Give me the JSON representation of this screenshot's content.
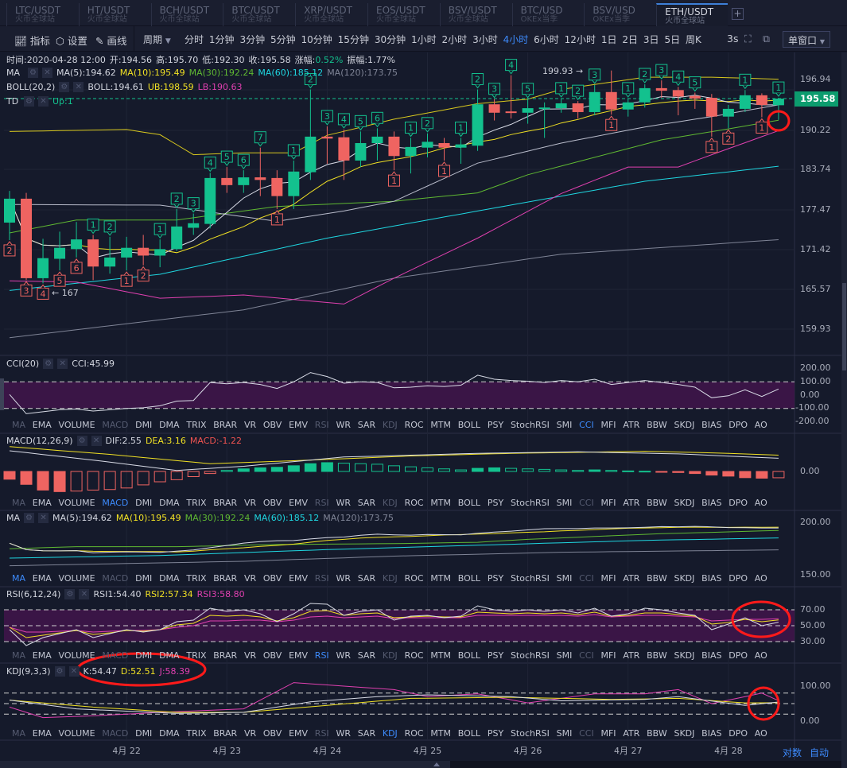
{
  "tabs": [
    {
      "symbol": "LTC/USDT",
      "exchange": "火币全球站"
    },
    {
      "symbol": "HT/USDT",
      "exchange": "火币全球站"
    },
    {
      "symbol": "BCH/USDT",
      "exchange": "火币全球站"
    },
    {
      "symbol": "BTC/USDT",
      "exchange": "火币全球站"
    },
    {
      "symbol": "XRP/USDT",
      "exchange": "火币全球站"
    },
    {
      "symbol": "EOS/USDT",
      "exchange": "火币全球站"
    },
    {
      "symbol": "BSV/USDT",
      "exchange": "火币全球站"
    },
    {
      "symbol": "BTC/USD",
      "exchange": "OKEx当季"
    },
    {
      "symbol": "BSV/USD",
      "exchange": "OKEx当季"
    },
    {
      "symbol": "ETH/USDT",
      "exchange": "火币全球站",
      "active": true
    }
  ],
  "add_tab": "+",
  "toolbar": {
    "indicators": "指标",
    "settings": "设置",
    "draw": "画线",
    "period": "周期",
    "periods": [
      "分时",
      "1分钟",
      "3分钟",
      "5分钟",
      "10分钟",
      "15分钟",
      "30分钟",
      "1小时",
      "2小时",
      "3小时",
      "4小时",
      "6小时",
      "12小时",
      "1日",
      "2日",
      "3日",
      "5日",
      "周K"
    ],
    "active_period": "4小时",
    "refresh": "3s",
    "window_mode": "单窗口"
  },
  "info": {
    "time": "时间:2020-04-28 12:00",
    "open": "开:194.56",
    "high": "高:195.70",
    "low": "低:192.30",
    "close": "收:195.58",
    "change_label": "涨幅:",
    "change": "0.52%",
    "amplitude": "振幅:1.77%"
  },
  "main_legends": {
    "ma": {
      "name": "MA",
      "ma5": "MA(5):194.62",
      "ma10": "MA(10):195.49",
      "ma30": "MA(30):192.24",
      "ma60": "MA(60):185.12",
      "ma120": "MA(120):173.75"
    },
    "boll": {
      "name": "BOLL(20,2)",
      "mid": "BOLL:194.61",
      "ub": "UB:198.59",
      "lb": "LB:190.63"
    },
    "td": {
      "name": "TD",
      "up": "Up:1"
    }
  },
  "price_axis": [
    "196.94",
    "190.22",
    "183.74",
    "177.47",
    "171.42",
    "165.57",
    "159.93"
  ],
  "current_price": "195.58",
  "high_mark": "199.93 →",
  "low_mark": "← 167",
  "indicator_list": [
    "MA",
    "EMA",
    "VOLUME",
    "MACD",
    "DMI",
    "DMA",
    "TRIX",
    "BRAR",
    "VR",
    "OBV",
    "EMV",
    "RSI",
    "WR",
    "SAR",
    "KDJ",
    "ROC",
    "MTM",
    "BOLL",
    "PSY",
    "StochRSI",
    "SMI",
    "CCI",
    "MFI",
    "ATR",
    "BBW",
    "SKDJ",
    "BIAS",
    "DPO",
    "AO"
  ],
  "open_indicators": [
    "MA",
    "MACD",
    "RSI",
    "KDJ",
    "CCI"
  ],
  "panes": {
    "cci": {
      "name": "CCI(20)",
      "value": "CCI:45.99",
      "axis": [
        "200.00",
        "100.00",
        "0.00",
        "-100.00",
        "-200.00"
      ],
      "active": "CCI"
    },
    "macd": {
      "name": "MACD(12,26,9)",
      "dif": "DIF:2.55",
      "dea": "DEA:3.16",
      "macd": "MACD:-1.22",
      "axis": [
        "0.00"
      ],
      "active": "MACD"
    },
    "ma": {
      "name": "MA",
      "ma5": "MA(5):194.62",
      "ma10": "MA(10):195.49",
      "ma30": "MA(30):192.24",
      "ma60": "MA(60):185.12",
      "ma120": "MA(120):173.75",
      "axis": [
        "200.00",
        "150.00"
      ],
      "active": "MA"
    },
    "rsi": {
      "name": "RSI(6,12,24)",
      "rsi1": "RSI1:54.40",
      "rsi2": "RSI2:57.34",
      "rsi3": "RSI3:58.80",
      "axis": [
        "70.00",
        "50.00",
        "30.00"
      ],
      "active": "RSI"
    },
    "kdj": {
      "name": "KDJ(9,3,3)",
      "k": "K:54.47",
      "d": "D:52.51",
      "j": "J:58.39",
      "axis": [
        "100.00",
        "0.00"
      ],
      "active": "KDJ"
    }
  },
  "dates": [
    "4月 22",
    "4月 23",
    "4月 24",
    "4月 25",
    "4月 26",
    "4月 27",
    "4月 28"
  ],
  "axis_modes": {
    "log": "对数",
    "auto": "自动"
  },
  "colors": {
    "up": "#13c18e",
    "down": "#ef6461",
    "ma5": "#d8dbe6",
    "ma10": "#f0e024",
    "ma30": "#5fb832",
    "ma60": "#1fd6e0",
    "ma120": "#7f8496",
    "boll_lb": "#e040b0",
    "accent": "#3d8bfd",
    "annotation": "#ff1a1a"
  },
  "chart_data": {
    "type": "candlestick",
    "interval": "4小时",
    "date_ticks_at_candle": [
      7,
      13,
      19,
      25,
      31,
      37,
      43
    ],
    "candles_ochl_note_order": "open,close,high,low",
    "candles": [
      [
        176.4,
        180.1,
        181.3,
        173.7
      ],
      [
        180.1,
        167.8,
        181.0,
        167.5
      ],
      [
        167.8,
        170.9,
        173.9,
        167.0
      ],
      [
        170.8,
        172.5,
        175.0,
        169.0
      ],
      [
        172.3,
        173.8,
        176.5,
        171.0
      ],
      [
        173.8,
        169.6,
        174.5,
        167.5
      ],
      [
        169.6,
        171.0,
        174.2,
        168.5
      ],
      [
        171.0,
        172.5,
        174.2,
        169.0
      ],
      [
        172.5,
        171.3,
        174.5,
        169.8
      ],
      [
        171.3,
        172.3,
        173.8,
        169.5
      ],
      [
        172.3,
        175.8,
        178.5,
        172.0
      ],
      [
        175.6,
        176.3,
        177.8,
        174.5
      ],
      [
        176.2,
        183.3,
        184.1,
        175.5
      ],
      [
        183.3,
        182.2,
        185.0,
        181.0
      ],
      [
        182.2,
        183.4,
        184.5,
        181.0
      ],
      [
        183.4,
        183.0,
        188.0,
        180.5
      ],
      [
        183.3,
        180.5,
        184.5,
        178.5
      ],
      [
        180.5,
        184.3,
        186.0,
        178.5
      ],
      [
        184.2,
        189.7,
        197.0,
        183.0
      ],
      [
        189.7,
        189.4,
        191.3,
        185.5
      ],
      [
        189.6,
        186.0,
        190.8,
        183.0
      ],
      [
        186.0,
        188.7,
        190.5,
        185.0
      ],
      [
        188.7,
        189.7,
        191.0,
        186.0
      ],
      [
        189.7,
        186.7,
        190.5,
        184.5
      ],
      [
        186.7,
        188.1,
        189.5,
        184.0
      ],
      [
        188.0,
        188.9,
        190.2,
        186.5
      ],
      [
        188.7,
        188.0,
        189.5,
        186.0
      ],
      [
        188.0,
        188.5,
        189.5,
        185.5
      ],
      [
        188.3,
        194.7,
        197.0,
        187.5
      ],
      [
        194.7,
        193.4,
        195.5,
        192.2
      ],
      [
        193.6,
        193.4,
        199.2,
        192.5
      ],
      [
        193.4,
        194.1,
        195.5,
        191.7
      ],
      [
        194.0,
        194.2,
        195.0,
        189.5
      ],
      [
        194.1,
        194.85,
        195.6,
        193.4
      ],
      [
        194.85,
        193.5,
        195.2,
        192.5
      ],
      [
        193.5,
        196.6,
        197.7,
        193.0
      ],
      [
        196.6,
        193.9,
        199.93,
        193.1
      ],
      [
        193.9,
        195.0,
        195.6,
        192.8
      ],
      [
        195.0,
        197.2,
        197.8,
        194.2
      ],
      [
        197.2,
        196.8,
        198.4,
        195.7
      ],
      [
        196.9,
        195.9,
        197.4,
        193.0
      ],
      [
        196.0,
        195.6,
        196.5,
        194.0
      ],
      [
        195.7,
        192.8,
        196.3,
        189.7
      ],
      [
        192.8,
        194.0,
        194.6,
        191.0
      ],
      [
        194.0,
        196.1,
        196.9,
        193.5
      ],
      [
        196.1,
        194.6,
        196.4,
        192.7
      ],
      [
        194.56,
        195.58,
        195.7,
        192.3
      ]
    ],
    "td_up": [
      [
        5,
        1
      ],
      [
        6,
        2
      ],
      [
        9,
        1
      ],
      [
        10,
        2
      ],
      [
        11,
        3
      ],
      [
        12,
        4
      ],
      [
        13,
        5
      ],
      [
        14,
        6
      ],
      [
        15,
        7
      ],
      [
        17,
        1
      ],
      [
        18,
        2
      ],
      [
        19,
        3
      ],
      [
        20,
        4
      ],
      [
        21,
        5
      ],
      [
        22,
        6
      ],
      [
        24,
        1
      ],
      [
        25,
        2
      ],
      [
        27,
        1
      ],
      [
        28,
        2
      ],
      [
        29,
        3
      ],
      [
        30,
        4
      ],
      [
        31,
        5
      ],
      [
        33,
        1
      ],
      [
        34,
        2
      ],
      [
        35,
        3
      ],
      [
        37,
        1
      ],
      [
        38,
        2
      ],
      [
        39,
        3
      ],
      [
        40,
        4
      ],
      [
        41,
        5
      ],
      [
        44,
        1
      ],
      [
        46,
        1
      ]
    ],
    "td_down": [
      [
        0,
        2
      ],
      [
        1,
        3
      ],
      [
        2,
        4
      ],
      [
        3,
        5
      ],
      [
        4,
        6
      ],
      [
        7,
        1
      ],
      [
        8,
        2
      ],
      [
        16,
        1
      ],
      [
        23,
        1
      ],
      [
        26,
        1
      ],
      [
        36,
        1
      ],
      [
        42,
        1
      ],
      [
        43,
        2
      ],
      [
        45,
        1
      ]
    ],
    "ma30": [
      [
        0,
        174.8
      ],
      [
        4,
        176.8
      ],
      [
        10,
        176.8
      ],
      [
        16,
        178.9
      ],
      [
        23,
        179.7
      ],
      [
        28,
        181.0
      ],
      [
        31,
        183.8
      ],
      [
        35,
        186.5
      ],
      [
        39,
        189.2
      ],
      [
        43,
        190.9
      ],
      [
        46,
        192.24
      ]
    ],
    "ma60": [
      [
        0,
        165.9
      ],
      [
        9,
        168.4
      ],
      [
        19,
        174.0
      ],
      [
        28,
        178.2
      ],
      [
        38,
        182.8
      ],
      [
        46,
        185.12
      ]
    ],
    "ma120": [
      [
        0,
        158.6
      ],
      [
        14,
        162.9
      ],
      [
        23,
        167.8
      ],
      [
        33,
        171.5
      ],
      [
        46,
        173.75
      ]
    ],
    "boll_ub": [
      [
        0,
        190.5
      ],
      [
        7,
        190.8
      ],
      [
        9,
        190.0
      ],
      [
        11,
        186.9
      ],
      [
        14,
        187.2
      ],
      [
        17,
        187.2
      ],
      [
        19,
        189.9
      ],
      [
        23,
        192.4
      ],
      [
        28,
        194.8
      ],
      [
        31,
        195.5
      ],
      [
        33,
        197.0
      ],
      [
        38,
        198.9
      ],
      [
        42,
        198.9
      ],
      [
        46,
        198.59
      ]
    ],
    "boll_mid": [
      [
        0,
        179.2
      ],
      [
        9,
        179.1
      ],
      [
        16,
        176.6
      ],
      [
        20,
        178.2
      ],
      [
        23,
        179.7
      ],
      [
        28,
        185.6
      ],
      [
        33,
        188.7
      ],
      [
        38,
        191.2
      ],
      [
        42,
        192.8
      ],
      [
        46,
        194.61
      ]
    ],
    "boll_lb": [
      [
        0,
        167.4
      ],
      [
        4,
        167.2
      ],
      [
        9,
        164.7
      ],
      [
        14,
        165.2
      ],
      [
        20,
        163.8
      ],
      [
        23,
        167.8
      ],
      [
        28,
        174.0
      ],
      [
        33,
        180.9
      ],
      [
        37,
        185.0
      ],
      [
        40,
        185.0
      ],
      [
        42,
        186.9
      ],
      [
        46,
        190.63
      ]
    ],
    "cci": [
      5,
      -140,
      -125,
      -110,
      -105,
      -120,
      -110,
      -100,
      -95,
      -80,
      -45,
      -40,
      95,
      85,
      95,
      80,
      50,
      100,
      170,
      140,
      90,
      100,
      95,
      55,
      60,
      70,
      65,
      75,
      150,
      120,
      110,
      105,
      95,
      110,
      100,
      120,
      80,
      95,
      110,
      95,
      80,
      60,
      -20,
      -5,
      40,
      -10,
      45.99
    ],
    "macd_hist": [
      -1.5,
      -2.5,
      -3.6,
      -3.9,
      -3.8,
      -3.6,
      -3.5,
      -3.2,
      -2.6,
      -2.0,
      -1.6,
      -1.0,
      -0.4,
      0.2,
      0.5,
      0.7,
      0.8,
      1.1,
      1.5,
      1.7,
      1.6,
      1.5,
      1.4,
      1.1,
      0.9,
      0.7,
      0.5,
      0.3,
      0.6,
      0.7,
      0.6,
      0.5,
      0.4,
      0.3,
      0.2,
      0.3,
      0.2,
      0.1,
      0.05,
      -0.1,
      -0.2,
      -0.4,
      -0.7,
      -0.9,
      -1.2,
      -1.3,
      -1.22
    ],
    "macd_dif": [
      [
        0,
        4.0
      ],
      [
        5,
        2.2
      ],
      [
        10,
        0.2
      ],
      [
        14,
        1.0
      ],
      [
        20,
        2.8
      ],
      [
        28,
        3.5
      ],
      [
        34,
        3.8
      ],
      [
        40,
        3.4
      ],
      [
        46,
        2.55
      ]
    ],
    "macd_dea": [
      [
        0,
        4.8
      ],
      [
        6,
        3.3
      ],
      [
        12,
        1.5
      ],
      [
        18,
        2.2
      ],
      [
        24,
        3.0
      ],
      [
        30,
        3.5
      ],
      [
        38,
        3.9
      ],
      [
        42,
        3.6
      ],
      [
        46,
        3.16
      ]
    ],
    "rsi1": [
      45,
      25,
      35,
      40,
      45,
      35,
      40,
      45,
      42,
      45,
      55,
      57,
      72,
      68,
      70,
      65,
      55,
      65,
      78,
      77,
      63,
      68,
      70,
      57,
      62,
      63,
      60,
      62,
      75,
      70,
      68,
      70,
      68,
      70,
      66,
      72,
      62,
      65,
      72,
      70,
      66,
      63,
      45,
      52,
      60,
      50,
      54.4
    ],
    "rsi2": [
      48,
      35,
      38,
      41,
      44,
      39,
      41,
      44,
      43,
      45,
      51,
      53,
      63,
      62,
      63,
      61,
      56,
      60,
      68,
      69,
      63,
      65,
      66,
      60,
      61,
      62,
      61,
      61,
      67,
      66,
      65,
      66,
      65,
      66,
      64,
      67,
      62,
      63,
      66,
      66,
      64,
      62,
      52,
      54,
      58,
      55,
      57.34
    ],
    "rsi3": [
      48,
      42,
      42,
      43,
      44,
      42,
      43,
      44,
      44,
      45,
      48,
      50,
      56,
      56,
      57,
      57,
      55,
      57,
      61,
      62,
      60,
      61,
      62,
      59,
      60,
      60,
      60,
      60,
      63,
      63,
      63,
      63,
      63,
      63,
      62,
      64,
      61,
      62,
      63,
      63,
      62,
      61,
      56,
      57,
      58,
      58,
      58.8
    ],
    "kdj_k": [
      [
        0,
        60
      ],
      [
        4,
        35
      ],
      [
        10,
        22
      ],
      [
        14,
        25
      ],
      [
        18,
        55
      ],
      [
        22,
        70
      ],
      [
        25,
        75
      ],
      [
        30,
        70
      ],
      [
        33,
        58
      ],
      [
        38,
        62
      ],
      [
        40,
        70
      ],
      [
        44,
        45
      ],
      [
        46,
        54.47
      ]
    ],
    "kdj_d": [
      [
        0,
        60
      ],
      [
        5,
        40
      ],
      [
        10,
        25
      ],
      [
        14,
        25
      ],
      [
        19,
        45
      ],
      [
        24,
        65
      ],
      [
        30,
        68
      ],
      [
        36,
        62
      ],
      [
        40,
        65
      ],
      [
        44,
        52
      ],
      [
        46,
        52.51
      ]
    ],
    "kdj_j": [
      [
        0,
        40
      ],
      [
        2,
        10
      ],
      [
        5,
        15
      ],
      [
        9,
        25
      ],
      [
        14,
        35
      ],
      [
        17,
        110
      ],
      [
        20,
        100
      ],
      [
        23,
        90
      ],
      [
        25,
        70
      ],
      [
        28,
        78
      ],
      [
        31,
        52
      ],
      [
        35,
        78
      ],
      [
        38,
        78
      ],
      [
        40,
        90
      ],
      [
        42,
        50
      ],
      [
        45,
        80
      ],
      [
        47,
        60
      ],
      [
        46,
        58.39
      ]
    ]
  }
}
